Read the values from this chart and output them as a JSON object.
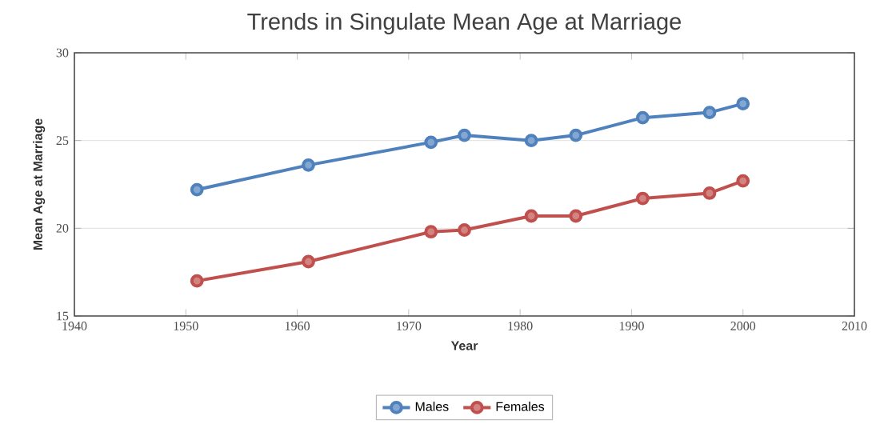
{
  "chart_data": {
    "type": "line",
    "title": "Trends in Singulate Mean Age at Marriage",
    "xlabel": "Year",
    "ylabel": "Mean Age at Marriage",
    "x": [
      1951,
      1961,
      1972,
      1975,
      1981,
      1985,
      1991,
      1997,
      2000
    ],
    "series": [
      {
        "name": "Males",
        "color": "#4f81bd",
        "values": [
          22.2,
          23.6,
          24.9,
          25.3,
          25.0,
          25.3,
          26.3,
          26.6,
          27.1
        ]
      },
      {
        "name": "Females",
        "color": "#c0504d",
        "values": [
          17.0,
          18.1,
          19.8,
          19.9,
          20.7,
          20.7,
          21.7,
          22.0,
          22.7
        ]
      }
    ],
    "xlim": [
      1940,
      2010
    ],
    "xticks": [
      1940,
      1950,
      1960,
      1970,
      1980,
      1990,
      2000,
      2010
    ],
    "ylim": [
      15,
      30
    ],
    "yticks": [
      15,
      20,
      25,
      30
    ],
    "grid": "y",
    "legend": "bottom",
    "marker": "circle",
    "line_style": "solid"
  }
}
